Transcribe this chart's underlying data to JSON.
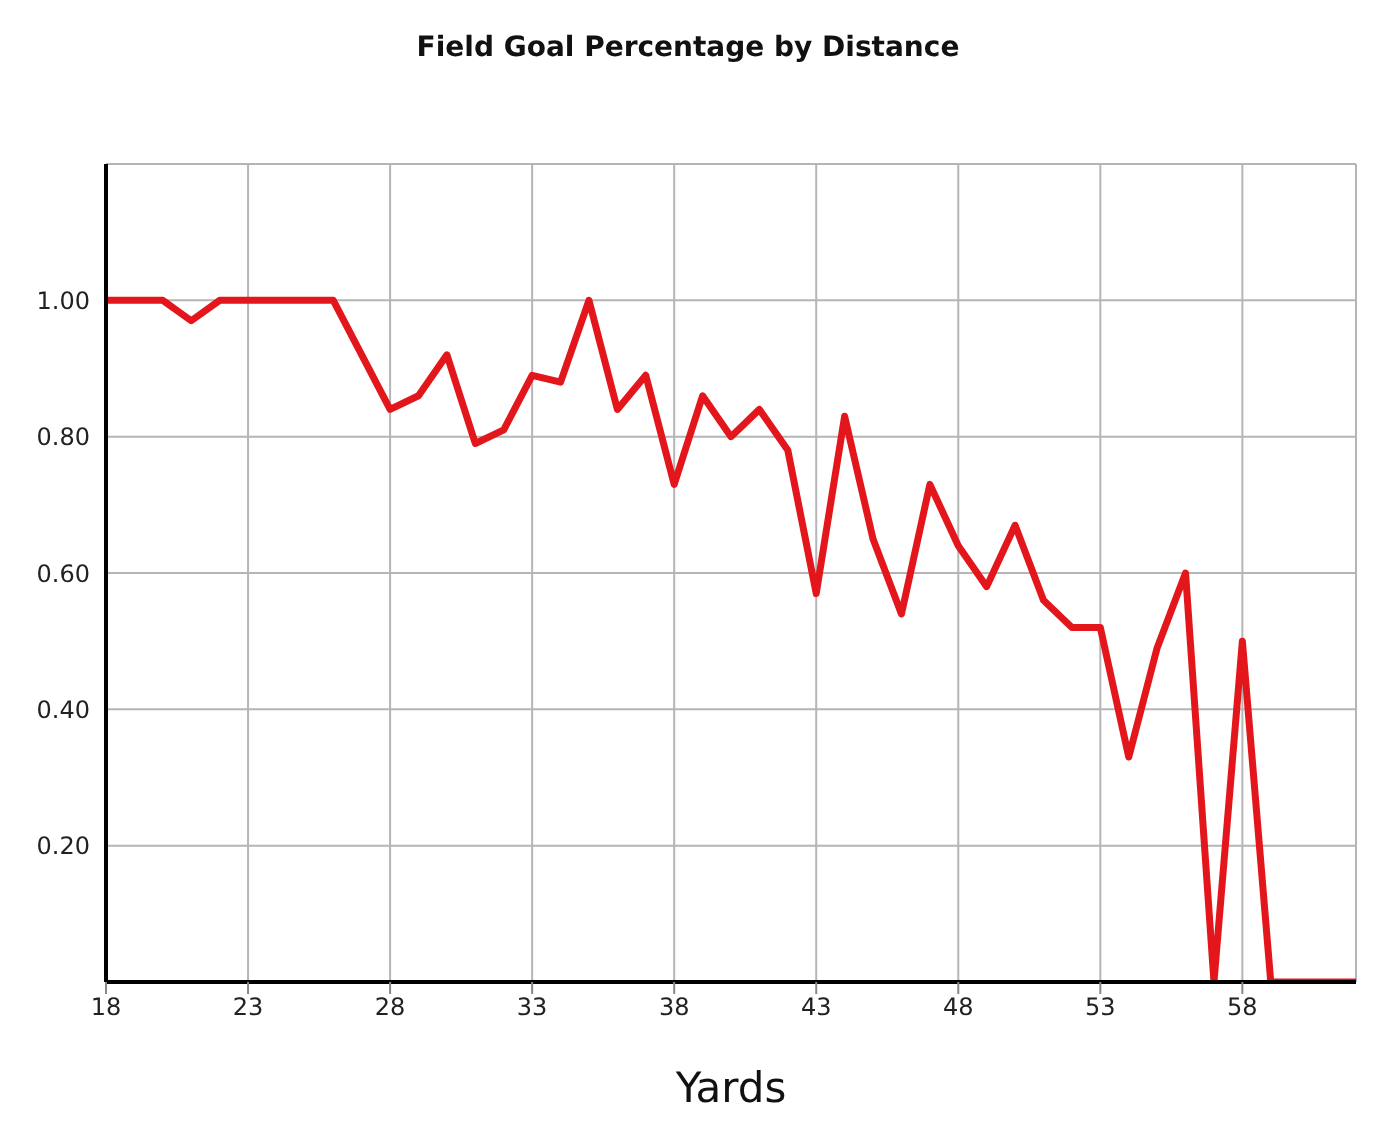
{
  "chart_data": {
    "type": "line",
    "title": "Field Goal Percentage by Distance",
    "xlabel": "Yards",
    "x": [
      18,
      19,
      20,
      21,
      22,
      23,
      24,
      25,
      26,
      27,
      28,
      29,
      30,
      31,
      32,
      33,
      34,
      35,
      36,
      37,
      38,
      39,
      40,
      41,
      42,
      43,
      44,
      45,
      46,
      47,
      48,
      49,
      50,
      51,
      52,
      53,
      54,
      55,
      56,
      57,
      58,
      59,
      60,
      61,
      62
    ],
    "series": [
      {
        "color": "#e3161c",
        "values": [
          1.0,
          1.0,
          1.0,
          0.97,
          1.0,
          1.0,
          1.0,
          1.0,
          1.0,
          0.92,
          0.84,
          0.86,
          0.92,
          0.79,
          0.81,
          0.89,
          0.88,
          1.0,
          0.84,
          0.89,
          0.73,
          0.86,
          0.8,
          0.84,
          0.78,
          0.57,
          0.83,
          0.65,
          0.54,
          0.73,
          0.64,
          0.58,
          0.67,
          0.56,
          0.52,
          0.52,
          0.33,
          0.49,
          0.6,
          0.0,
          0.5,
          0.0,
          0.0,
          0.0,
          0.0
        ]
      }
    ],
    "xlim": [
      18,
      62
    ],
    "xticks": [
      18,
      23,
      28,
      33,
      38,
      43,
      48,
      53,
      58
    ],
    "ylim": [
      0,
      1.2
    ],
    "yticks": [
      {
        "value": 0.2,
        "label": "0.20"
      },
      {
        "value": 0.4,
        "label": "0.40"
      },
      {
        "value": 0.6,
        "label": "0.60"
      },
      {
        "value": 0.8,
        "label": "0.80"
      },
      {
        "value": 1.0,
        "label": "1.00"
      }
    ],
    "grid": true,
    "marker": "none",
    "line_style": "solid"
  }
}
